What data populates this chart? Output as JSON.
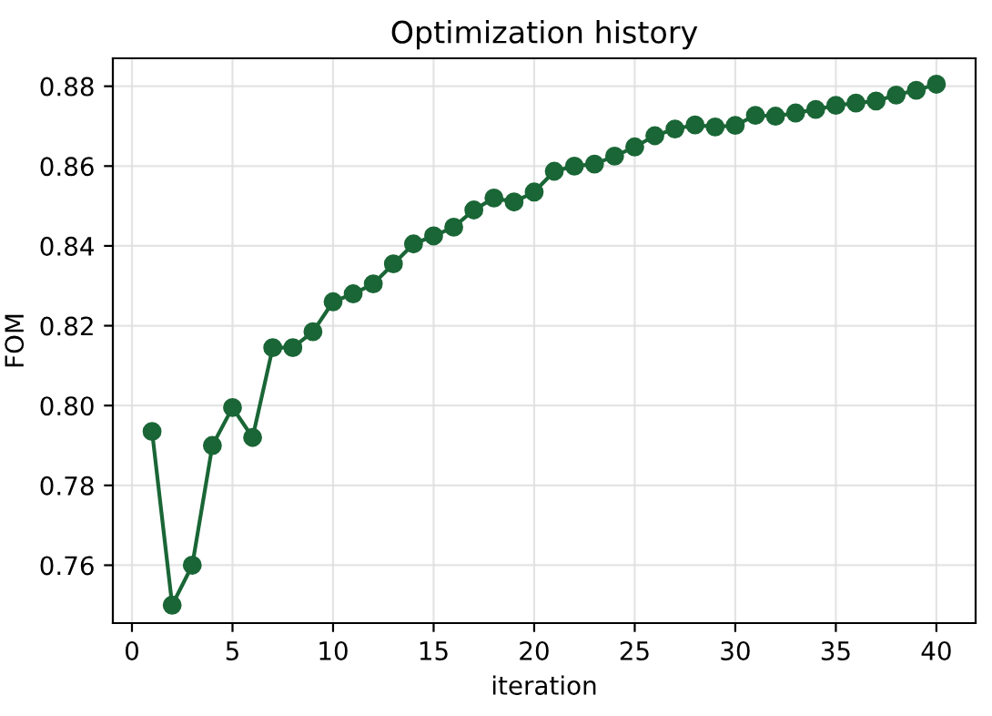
{
  "chart_data": {
    "type": "line",
    "title": "Optimization history",
    "xlabel": "iteration",
    "ylabel": "FOM",
    "x": [
      1,
      2,
      3,
      4,
      5,
      6,
      7,
      8,
      9,
      10,
      11,
      12,
      13,
      14,
      15,
      16,
      17,
      18,
      19,
      20,
      21,
      22,
      23,
      24,
      25,
      26,
      27,
      28,
      29,
      30,
      31,
      32,
      33,
      34,
      35,
      36,
      37,
      38,
      39,
      40
    ],
    "series": [
      {
        "color": "#1a6636",
        "values": [
          0.7935,
          0.75,
          0.76,
          0.79,
          0.7995,
          0.792,
          0.8145,
          0.8145,
          0.8185,
          0.826,
          0.828,
          0.8305,
          0.8355,
          0.8405,
          0.8425,
          0.8447,
          0.849,
          0.852,
          0.851,
          0.8535,
          0.8587,
          0.86,
          0.8605,
          0.8625,
          0.8648,
          0.8676,
          0.8693,
          0.8703,
          0.8698,
          0.8702,
          0.8727,
          0.8725,
          0.8733,
          0.8742,
          0.8752,
          0.8758,
          0.8763,
          0.8778,
          0.879,
          0.8805
        ]
      }
    ],
    "xlim": [
      -0.95,
      41.95
    ],
    "ylim": [
      0.7455,
      0.887
    ],
    "xticks": [
      0,
      5,
      10,
      15,
      20,
      25,
      30,
      35,
      40
    ],
    "yticks": [
      {
        "value": 0.76,
        "label": "0.76"
      },
      {
        "value": 0.78,
        "label": "0.78"
      },
      {
        "value": 0.8,
        "label": "0.80"
      },
      {
        "value": 0.82,
        "label": "0.82"
      },
      {
        "value": 0.84,
        "label": "0.84"
      },
      {
        "value": 0.86,
        "label": "0.86"
      },
      {
        "value": 0.88,
        "label": "0.88"
      }
    ],
    "grid": true,
    "marker": "circle",
    "line_style": "solid"
  }
}
